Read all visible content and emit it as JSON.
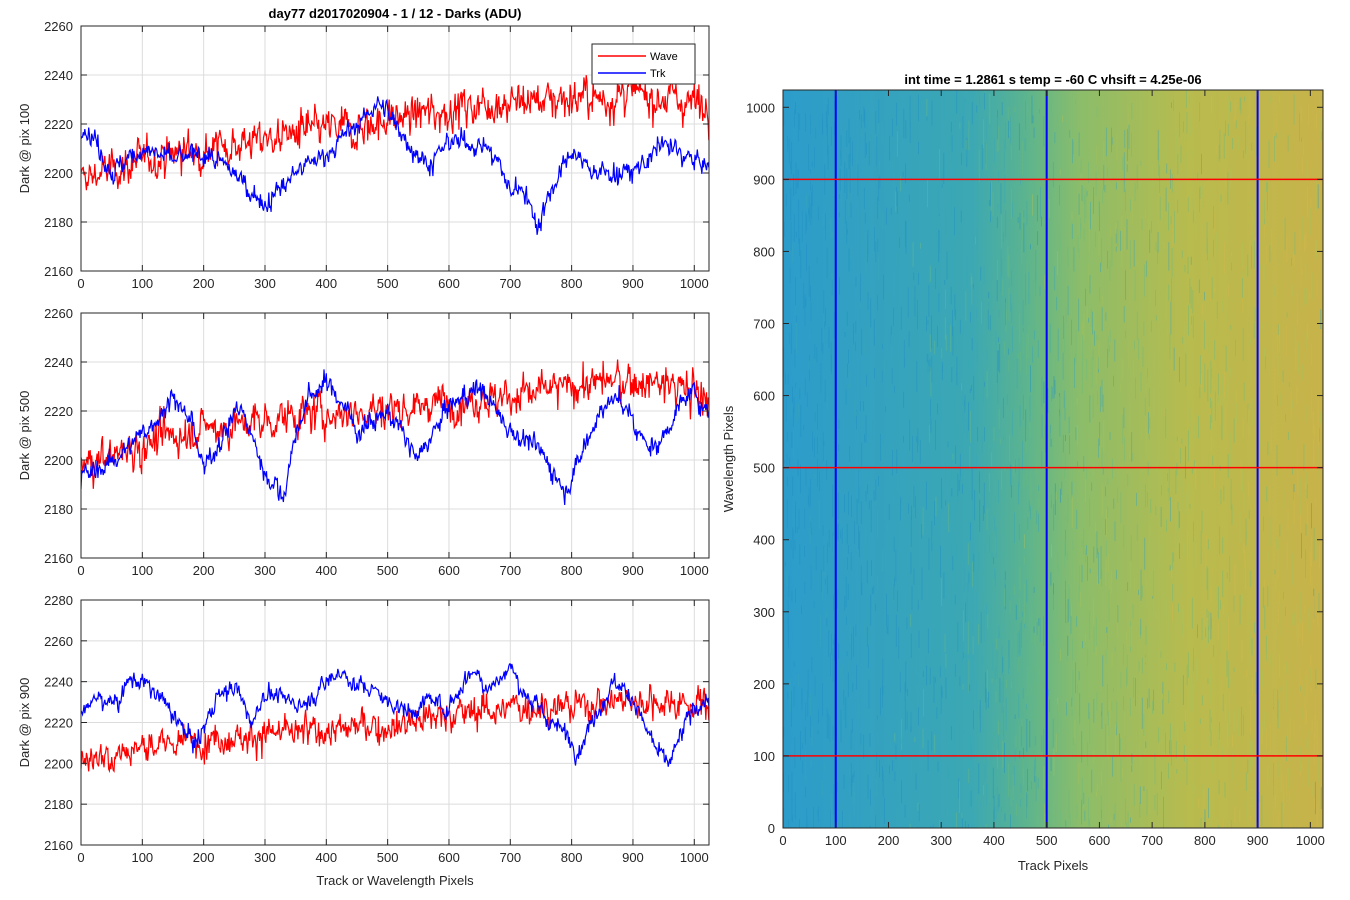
{
  "figure": {
    "title": "day77 d2017020904 - 1 / 12 - Darks (ADU)"
  },
  "chart_data": [
    {
      "type": "line",
      "xlabel": "",
      "ylabel": "Dark @ pix 100",
      "xlim": [
        0,
        1024
      ],
      "ylim": [
        2160,
        2260
      ],
      "xticks": [
        0,
        100,
        200,
        300,
        400,
        500,
        600,
        700,
        800,
        900,
        1000
      ],
      "yticks": [
        2160,
        2180,
        2200,
        2220,
        2240,
        2260
      ],
      "grid": true,
      "legend": "top-right",
      "series": [
        {
          "name": "Wave",
          "color": "#ff0000",
          "x": [
            0,
            30,
            60,
            100,
            150,
            200,
            250,
            300,
            350,
            400,
            450,
            500,
            550,
            600,
            650,
            700,
            750,
            800,
            850,
            900,
            950,
            1000,
            1024
          ],
          "y": [
            2197,
            2200,
            2202,
            2205,
            2208,
            2210,
            2212,
            2214,
            2216,
            2218,
            2218,
            2222,
            2224,
            2226,
            2228,
            2229,
            2230,
            2231,
            2230,
            2232,
            2231,
            2229,
            2228
          ],
          "noise": 9
        },
        {
          "name": "Trk",
          "color": "#0000ff",
          "x": [
            0,
            20,
            50,
            100,
            150,
            200,
            250,
            300,
            350,
            400,
            430,
            460,
            480,
            500,
            540,
            570,
            600,
            650,
            680,
            700,
            720,
            745,
            760,
            800,
            830,
            850,
            900,
            950,
            1000,
            1024
          ],
          "y": [
            2218,
            2215,
            2200,
            2210,
            2205,
            2208,
            2200,
            2187,
            2200,
            2208,
            2215,
            2222,
            2228,
            2225,
            2210,
            2203,
            2213,
            2212,
            2205,
            2192,
            2195,
            2178,
            2190,
            2208,
            2202,
            2200,
            2200,
            2212,
            2205,
            2202
          ],
          "noise": 5
        }
      ]
    },
    {
      "type": "line",
      "xlabel": "",
      "ylabel": "Dark @ pix 500",
      "xlim": [
        0,
        1024
      ],
      "ylim": [
        2160,
        2260
      ],
      "xticks": [
        0,
        100,
        200,
        300,
        400,
        500,
        600,
        700,
        800,
        900,
        1000
      ],
      "yticks": [
        2160,
        2180,
        2200,
        2220,
        2240,
        2260
      ],
      "grid": true,
      "series": [
        {
          "name": "Wave",
          "color": "#ff0000",
          "x": [
            0,
            50,
            100,
            150,
            200,
            250,
            300,
            350,
            400,
            450,
            500,
            550,
            600,
            650,
            700,
            750,
            800,
            850,
            900,
            950,
            1000,
            1024
          ],
          "y": [
            2198,
            2202,
            2206,
            2210,
            2213,
            2214,
            2216,
            2218,
            2219,
            2220,
            2221,
            2222,
            2224,
            2225,
            2226,
            2228,
            2230,
            2232,
            2232,
            2231,
            2228,
            2226
          ],
          "noise": 9
        },
        {
          "name": "Trk",
          "color": "#0000ff",
          "x": [
            0,
            30,
            60,
            100,
            120,
            150,
            180,
            200,
            230,
            260,
            300,
            330,
            350,
            370,
            400,
            430,
            450,
            500,
            550,
            600,
            650,
            700,
            730,
            760,
            790,
            820,
            850,
            880,
            910,
            940,
            970,
            1000,
            1024
          ],
          "y": [
            2193,
            2196,
            2202,
            2210,
            2216,
            2226,
            2215,
            2196,
            2210,
            2222,
            2195,
            2185,
            2210,
            2225,
            2232,
            2222,
            2212,
            2220,
            2200,
            2222,
            2230,
            2212,
            2208,
            2200,
            2187,
            2205,
            2222,
            2225,
            2210,
            2205,
            2220,
            2228,
            2220
          ],
          "noise": 5
        }
      ]
    },
    {
      "type": "line",
      "xlabel": "Track or Wavelength Pixels",
      "ylabel": "Dark @ pix 900",
      "xlim": [
        0,
        1024
      ],
      "ylim": [
        2160,
        2280
      ],
      "xticks": [
        0,
        100,
        200,
        300,
        400,
        500,
        600,
        700,
        800,
        900,
        1000
      ],
      "yticks": [
        2160,
        2180,
        2200,
        2220,
        2240,
        2260,
        2280
      ],
      "grid": true,
      "series": [
        {
          "name": "Wave",
          "color": "#ff0000",
          "x": [
            0,
            50,
            100,
            150,
            200,
            250,
            300,
            350,
            400,
            450,
            500,
            550,
            600,
            650,
            700,
            750,
            800,
            850,
            900,
            950,
            1000,
            1024
          ],
          "y": [
            2202,
            2205,
            2208,
            2210,
            2212,
            2213,
            2214,
            2215,
            2216,
            2218,
            2218,
            2222,
            2224,
            2226,
            2227,
            2228,
            2228,
            2230,
            2231,
            2230,
            2230,
            2228
          ],
          "noise": 9
        },
        {
          "name": "Trk",
          "color": "#0000ff",
          "x": [
            0,
            30,
            60,
            80,
            110,
            140,
            170,
            190,
            220,
            250,
            280,
            300,
            330,
            360,
            400,
            420,
            450,
            480,
            500,
            540,
            570,
            600,
            620,
            640,
            660,
            680,
            700,
            720,
            760,
            790,
            810,
            840,
            870,
            900,
            920,
            940,
            960,
            980,
            1000,
            1024
          ],
          "y": [
            2226,
            2232,
            2230,
            2242,
            2238,
            2228,
            2215,
            2210,
            2232,
            2238,
            2220,
            2235,
            2232,
            2228,
            2240,
            2245,
            2238,
            2236,
            2230,
            2225,
            2232,
            2226,
            2238,
            2246,
            2238,
            2240,
            2248,
            2235,
            2222,
            2215,
            2205,
            2225,
            2240,
            2232,
            2218,
            2205,
            2200,
            2215,
            2228,
            2230
          ],
          "noise": 5
        }
      ]
    },
    {
      "type": "heatmap",
      "title": "int time = 1.2861 s    temp = -60 C    vhsift = 4.25e-06",
      "xlabel": "Track Pixels",
      "ylabel": "Wavelength Pixels",
      "xlim": [
        0,
        1024
      ],
      "ylim": [
        0,
        1024
      ],
      "xticks": [
        0,
        100,
        200,
        300,
        400,
        500,
        600,
        700,
        800,
        900,
        1000
      ],
      "yticks": [
        0,
        100,
        200,
        300,
        400,
        500,
        600,
        700,
        800,
        900,
        1000
      ],
      "colormap": [
        "#2c9ccb",
        "#3ca8b3",
        "#5cb48e",
        "#8bbd6a",
        "#b8bb4e",
        "#c7b34a"
      ],
      "gradient_along_x": [
        0.0,
        0.35,
        0.45,
        0.55,
        0.75,
        1.0
      ],
      "markers": {
        "vertical_lines": {
          "x": [
            100,
            500,
            900
          ],
          "color": "#0000ff"
        },
        "horizontal_lines": {
          "y": [
            100,
            500,
            900
          ],
          "color": "#ff0000"
        }
      }
    }
  ]
}
